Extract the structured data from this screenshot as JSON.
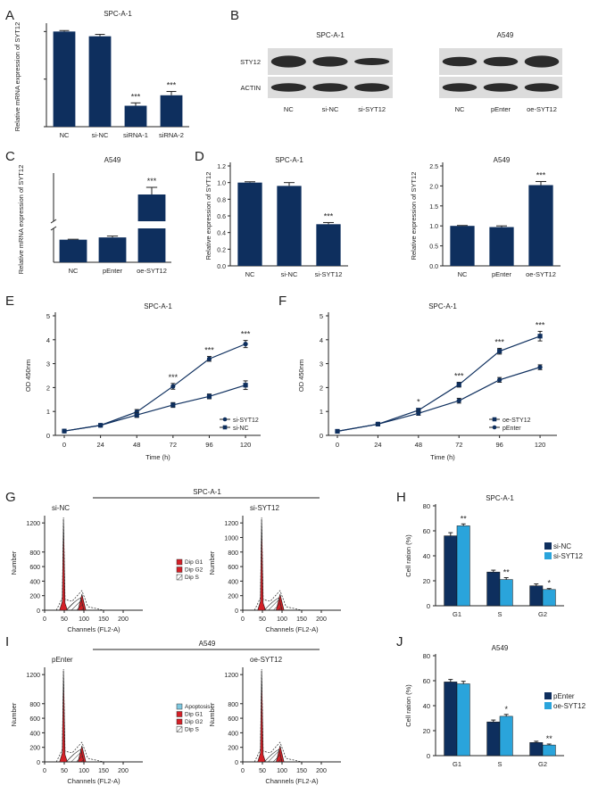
{
  "colors": {
    "navy": "#0e2f5e",
    "cyan": "#2aa4db",
    "red": "#d42027",
    "lightblue": "#7ec8e0",
    "axis": "#222222",
    "blot_bg": "#dcdcdc",
    "band": "#2b2b2b"
  },
  "panel_letters": [
    "A",
    "B",
    "C",
    "D",
    "E",
    "F",
    "G",
    "H",
    "I",
    "J"
  ],
  "sig_labels": {
    "one": "*",
    "two": "**",
    "three": "***"
  },
  "chart_data": [
    {
      "id": "A",
      "type": "bar",
      "title": "SPC-A-1",
      "ylabel": "Relative mRNA expression of SYT12",
      "categories": [
        "NC",
        "si-NC",
        "siRNA-1",
        "siRNA-2"
      ],
      "values": [
        1.0,
        0.95,
        0.22,
        0.33
      ],
      "errors": [
        0.01,
        0.02,
        0.03,
        0.04
      ],
      "sig": [
        "",
        "",
        "***",
        "***"
      ],
      "ylim": [
        0,
        1.05
      ]
    },
    {
      "id": "C",
      "type": "bar",
      "title": "A549",
      "ylabel": "Relative mRNA expression of SYT12",
      "categories": [
        "NC",
        "pEnter",
        "oe-SYT12"
      ],
      "values": [
        1.0,
        1.1,
        35
      ],
      "errors": [
        0.02,
        0.06,
        4
      ],
      "sig": [
        "",
        "",
        "***"
      ],
      "axis_break": true
    },
    {
      "id": "D1",
      "type": "bar",
      "title": "SPC-A-1",
      "ylabel": "Relative expression of SYT12",
      "categories": [
        "NC",
        "si-NC",
        "si-SYT12"
      ],
      "values": [
        1.0,
        0.96,
        0.5
      ],
      "errors": [
        0.01,
        0.04,
        0.02
      ],
      "sig": [
        "",
        "",
        "***"
      ],
      "ylim": [
        0,
        1.2
      ],
      "yticks": [
        "0.0",
        "0.2",
        "0.4",
        "0.6",
        "0.8",
        "1.0",
        "1.2"
      ]
    },
    {
      "id": "D2",
      "type": "bar",
      "title": "A549",
      "ylabel": "Relative expression of SYT12",
      "categories": [
        "NC",
        "pEnter",
        "oe-SYT12"
      ],
      "values": [
        1.0,
        0.97,
        2.02
      ],
      "errors": [
        0.01,
        0.03,
        0.09
      ],
      "sig": [
        "",
        "",
        "***"
      ],
      "ylim": [
        0,
        2.5
      ],
      "yticks": [
        "0.0",
        "0.5",
        "1.0",
        "1.5",
        "2.0",
        "2.5"
      ]
    },
    {
      "id": "E",
      "type": "line",
      "title": "SPC-A-1",
      "xlabel": "Time (h)",
      "ylabel": "OD 450nm",
      "x": [
        0,
        24,
        48,
        72,
        96,
        120
      ],
      "ylim": [
        0,
        5
      ],
      "series": [
        {
          "name": "si-SYT12",
          "marker": "circle",
          "values": [
            0.18,
            0.42,
            0.98,
            2.05,
            3.2,
            3.82
          ],
          "errors": [
            0.02,
            0.03,
            0.1,
            0.12,
            0.1,
            0.15
          ]
        },
        {
          "name": "si-NC",
          "marker": "square",
          "values": [
            0.18,
            0.42,
            0.85,
            1.27,
            1.63,
            2.1
          ],
          "errors": [
            0.02,
            0.03,
            0.1,
            0.1,
            0.1,
            0.18
          ]
        }
      ],
      "sig": [
        "",
        "",
        "",
        "***",
        "***",
        "***"
      ]
    },
    {
      "id": "F",
      "type": "line",
      "title": "SPC-A-1",
      "xlabel": "Time (h)",
      "ylabel": "OD 450nm",
      "x": [
        0,
        24,
        48,
        72,
        96,
        120
      ],
      "ylim": [
        0,
        5
      ],
      "series": [
        {
          "name": "oe-STY12",
          "marker": "square",
          "values": [
            0.17,
            0.47,
            1.05,
            2.12,
            3.52,
            4.15
          ],
          "errors": [
            0.02,
            0.03,
            0.08,
            0.1,
            0.12,
            0.2
          ]
        },
        {
          "name": "pEnter",
          "marker": "circle",
          "values": [
            0.17,
            0.47,
            0.92,
            1.45,
            2.32,
            2.85
          ],
          "errors": [
            0.02,
            0.03,
            0.08,
            0.1,
            0.1,
            0.1
          ]
        }
      ],
      "sig": [
        "",
        "",
        "*",
        "***",
        "***",
        "***"
      ]
    },
    {
      "id": "H",
      "type": "bar",
      "title": "SPC-A-1",
      "ylabel": "Cell ration (%)",
      "categories": [
        "G1",
        "S",
        "G2"
      ],
      "ylim": [
        0,
        80
      ],
      "series": [
        {
          "name": "si-NC",
          "values": [
            56,
            27,
            16
          ],
          "errors": [
            2.5,
            1.5,
            1.5
          ]
        },
        {
          "name": "si-SYT12",
          "values": [
            64,
            21,
            13
          ],
          "errors": [
            1.5,
            1.5,
            0.8
          ]
        }
      ],
      "sig": [
        "**",
        "**",
        "*"
      ]
    },
    {
      "id": "J",
      "type": "bar",
      "title": "A549",
      "ylabel": "Cell ration (%)",
      "categories": [
        "G1",
        "S",
        "G2"
      ],
      "ylim": [
        0,
        80
      ],
      "series": [
        {
          "name": "pEnter",
          "values": [
            59,
            27,
            10.5
          ],
          "errors": [
            2,
            1.5,
            1
          ]
        },
        {
          "name": "oe-SYT12",
          "values": [
            57.5,
            31.5,
            8.5
          ],
          "errors": [
            2,
            1.5,
            0.8
          ]
        }
      ],
      "sig": [
        "",
        "*",
        "**"
      ]
    }
  ],
  "western_blot": {
    "left": {
      "title": "SPC-A-1",
      "rows": [
        "STY12",
        "ACTIN"
      ],
      "lanes": [
        "NC",
        "si-NC",
        "si-SYT12"
      ]
    },
    "right": {
      "title": "A549",
      "lanes": [
        "NC",
        "pEnter",
        "oe-SYT12"
      ]
    }
  },
  "flow": {
    "G": {
      "header": "SPC-A-1",
      "left_label": "si-NC",
      "right_label": "si-SYT12",
      "legend": [
        "Dip G1",
        "Dip G2",
        "Dip S"
      ],
      "left_yticks": [
        "0",
        "200",
        "400",
        "600",
        "800",
        "1200"
      ],
      "right_yticks": [
        "0",
        "200",
        "400",
        "600",
        "800",
        "1000",
        "1200"
      ]
    },
    "I": {
      "header": "A549",
      "left_label": "pEnter",
      "right_label": "oe-SYT12",
      "legend": [
        "Apoptosis",
        "Dip G1",
        "Dip G2",
        "Dip S"
      ],
      "left_yticks": [
        "0",
        "200",
        "400",
        "600",
        "800",
        "1200"
      ],
      "right_yticks": [
        "0",
        "200",
        "400",
        "600",
        "800",
        "1200"
      ]
    },
    "xticks": [
      "0",
      "50",
      "100",
      "150",
      "200"
    ],
    "xlabel": "Channels (FL2-A)",
    "ylabel": "Number"
  }
}
